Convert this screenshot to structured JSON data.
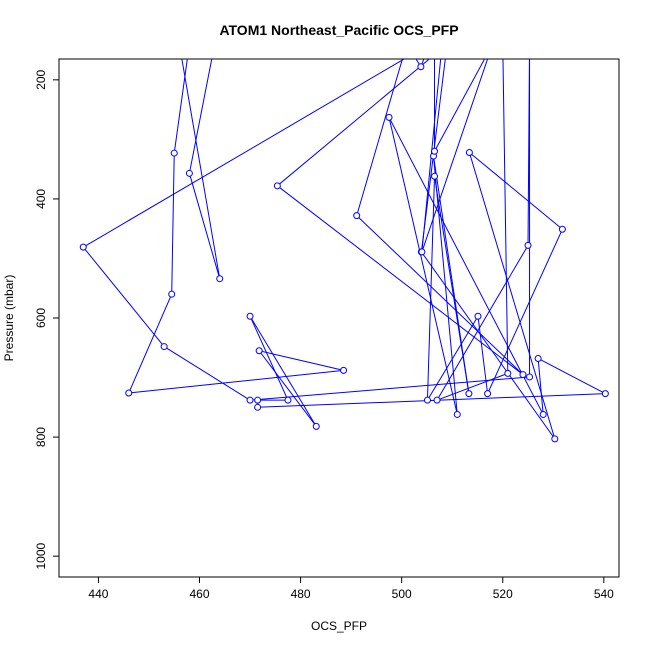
{
  "chart_data": {
    "type": "line",
    "title": "ATOM1 Northeast_Pacific OCS_PFP",
    "xlabel": "OCS_PFP",
    "ylabel": "Pressure (mbar)",
    "xlim": [
      432.2,
      543.0
    ],
    "ylim": [
      1035,
      165
    ],
    "y_reversed": true,
    "grid": false,
    "legend": "none",
    "marker": "open-circle",
    "line_color": "#0000ff",
    "x_ticks": [
      440,
      460,
      480,
      500,
      520,
      540
    ],
    "y_ticks": [
      200,
      400,
      600,
      800,
      1000
    ],
    "series": [
      {
        "points": [
          [
            458,
            140
          ],
          [
            455,
            323
          ],
          [
            454.5,
            560
          ],
          [
            446,
            726
          ],
          [
            488.5,
            688
          ],
          [
            471.8,
            655
          ],
          [
            483.1,
            782
          ],
          [
            470,
            597
          ],
          [
            477.5,
            738
          ],
          [
            471.5,
            738
          ],
          [
            471.5,
            750
          ],
          [
            540.3,
            727
          ],
          [
            527,
            668
          ],
          [
            528,
            762
          ],
          [
            497.5,
            263
          ],
          [
            511,
            762
          ],
          [
            506.3,
            328
          ],
          [
            513.3,
            727
          ],
          [
            506.5,
            362
          ],
          [
            505.1,
            738
          ],
          [
            515.1,
            597
          ],
          [
            517,
            727
          ],
          [
            531.8,
            451
          ],
          [
            513.4,
            322
          ],
          [
            530.3,
            803
          ],
          [
            503.9,
            489
          ],
          [
            509,
            140
          ],
          [
            475.4,
            378
          ],
          [
            524,
            695
          ],
          [
            491.1,
            428
          ],
          [
            501,
            140
          ],
          [
            503.8,
            178
          ],
          [
            505.5,
            140
          ],
          [
            437,
            481
          ],
          [
            453,
            648
          ],
          [
            470,
            738
          ],
          [
            525.3,
            699
          ],
          [
            525.3,
            140
          ],
          [
            525,
            478
          ],
          [
            507,
            738
          ],
          [
            521,
            693
          ],
          [
            520,
            140
          ],
          [
            506.5,
            140
          ],
          [
            506.5,
            320
          ],
          [
            518,
            140
          ],
          [
            504,
            489
          ],
          [
            508,
            140
          ],
          [
            457.5,
            140
          ],
          [
            463,
            140
          ],
          [
            458,
            357
          ],
          [
            464,
            534
          ],
          [
            456,
            140
          ]
        ]
      }
    ]
  }
}
